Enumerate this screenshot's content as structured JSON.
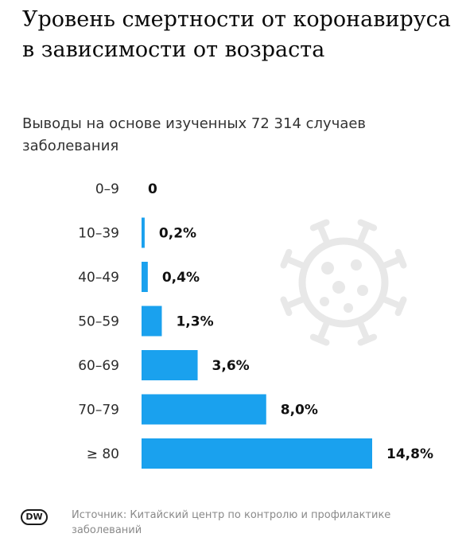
{
  "header": {
    "title": "Уровень смертности от коронавируса в зависимости от возраста",
    "subtitle": "Выводы на основе изученных 72 314 случаев заболевания"
  },
  "footer": {
    "logo_text": "DW",
    "source": "Источник: Китайский центр по контролю и профилактике заболеваний"
  },
  "colors": {
    "bar": "#1aa1ee",
    "decor": "#e8e8e8"
  },
  "decoration": {
    "icon": "virus-icon"
  },
  "chart_data": {
    "type": "bar",
    "orientation": "horizontal",
    "title": "Уровень смертности от коронавируса в зависимости от возраста",
    "subtitle": "Выводы на основе изученных 72 314 случаев заболевания",
    "categories": [
      "0–9",
      "10–39",
      "40–49",
      "50–59",
      "60–69",
      "70–79",
      "≥ 80"
    ],
    "values": [
      0,
      0.2,
      0.4,
      1.3,
      3.6,
      8.0,
      14.8
    ],
    "value_labels": [
      "0",
      "0,2%",
      "0,4%",
      "1,3%",
      "3,6%",
      "8,0%",
      "14,8%"
    ],
    "xlabel": "",
    "ylabel": "",
    "xlim": [
      0,
      14.8
    ],
    "grid": false,
    "legend": "none"
  }
}
